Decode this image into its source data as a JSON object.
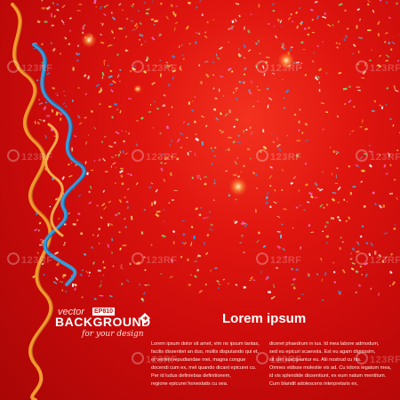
{
  "brand": {
    "vector_label": "vector",
    "ep_badge": "EP810",
    "background_label": "BACKGROUND",
    "tagline": "for your design"
  },
  "headline": "Lorem ipsum",
  "body_columns": [
    [
      "Lorem ipsum dolor sit amet, vim no ipsum tantas,",
      "facilis dissentiet an duo, mollis disputando qui et,",
      "et verrimi repudiandae mei, magna congue",
      "docendi cum ex, mel quando dicant epicurei cu.",
      "Per id ludus definiebas definitionem,",
      "regione epicurei honestatis cu sea."
    ],
    [
      "diceret phaedrum in ius. Id mea labore admodum,",
      "sed eu epicuri scaevola. Est eu agam dignissim,",
      "sit stet suscipiantur eu. Alii nostrud cu his.",
      "Omnes vidisse molestie vis ad. Cu iidons legatum mea,",
      "id vis splendide dissentiunt, ex eum natum mentitum.",
      "Cum blandit adolescens interpretaris ex,"
    ]
  ],
  "watermark_text": "123RF",
  "colors": {
    "background": "#d4100c",
    "ribbon_orange": "#f29a2e",
    "ribbon_blue": "#3a9ad9"
  }
}
